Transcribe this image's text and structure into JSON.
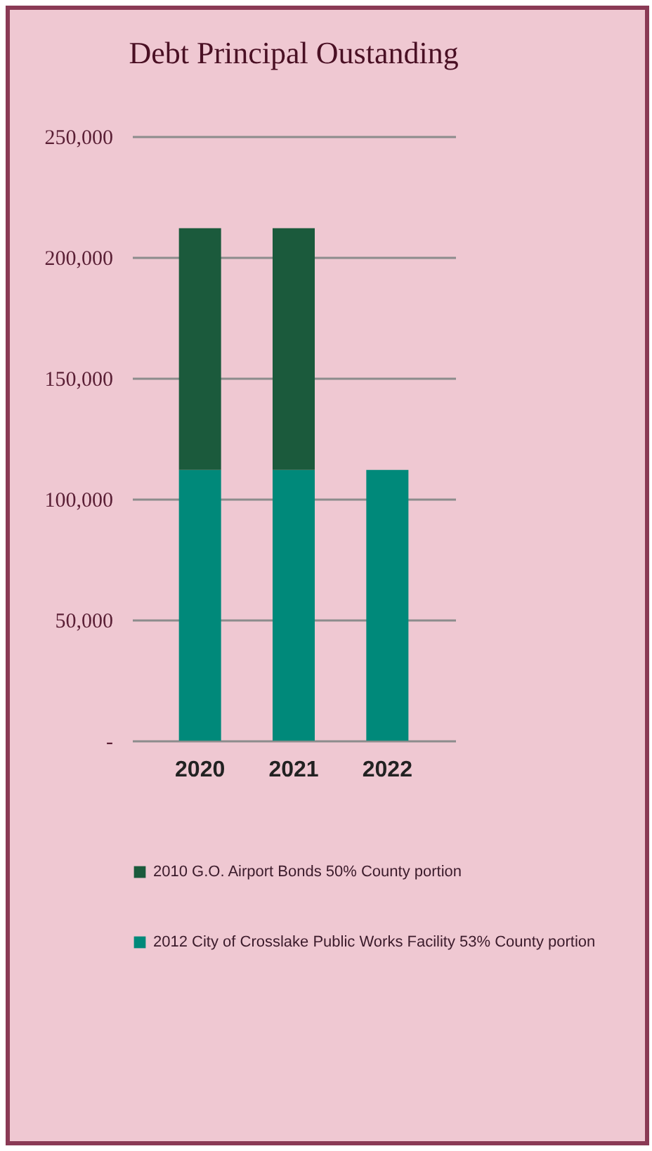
{
  "chart_data": {
    "type": "bar",
    "title": "Debt Principal Oustanding",
    "categories": [
      "2020",
      "2021",
      "2022"
    ],
    "stacked": true,
    "series": [
      {
        "name": "2012 City of Crosslake Public Works Facility 53% County portion",
        "color": "#00897a",
        "values": [
          112000,
          112000,
          112000
        ]
      },
      {
        "name": "2010 G.O. Airport Bonds 50% County portion",
        "color": "#1b5a3c",
        "values": [
          100000,
          100000,
          null
        ]
      }
    ],
    "ylim": [
      0,
      250000
    ],
    "yticks": [
      {
        "value": 0,
        "label": "-"
      },
      {
        "value": 50000,
        "label": "50,000"
      },
      {
        "value": 100000,
        "label": "100,000"
      },
      {
        "value": 150000,
        "label": "150,000"
      },
      {
        "value": 200000,
        "label": "200,000"
      },
      {
        "value": 250000,
        "label": "250,000"
      }
    ],
    "grid": "y",
    "legend": "bottom"
  }
}
